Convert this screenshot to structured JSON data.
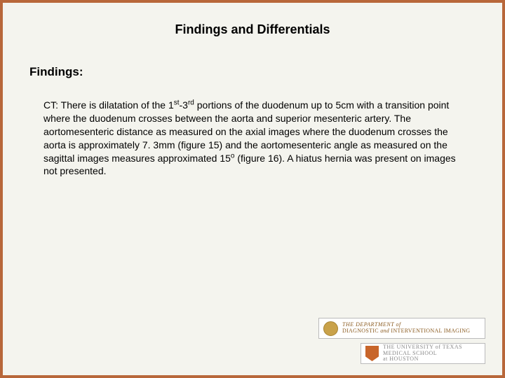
{
  "colors": {
    "border": "#b8673a",
    "background": "#f4f4ee",
    "text": "#000000",
    "logo_dept_accent": "#c9a24a",
    "logo_dept_text": "#8a5a1f",
    "logo_ut_accent": "#c8652a",
    "logo_ut_text": "#888888"
  },
  "title": "Findings and Differentials",
  "section_label": "Findings:",
  "body_prefix": "CT: There is dilatation of the 1",
  "body_sup1": "st",
  "body_mid1": "-3",
  "body_sup2": "rd",
  "body_mid2": " portions of the duodenum up to 5cm with a transition point where the duodenum crosses between the aorta and superior mesenteric artery. The aortomesenteric distance as measured on the axial images where the duodenum crosses the aorta is approximately 7. 3mm (figure 15) and the aortomesenteric angle as measured on the sagittal images measures approximated 15",
  "body_sup3": "o",
  "body_suffix": " (figure 16). A hiatus hernia was present on images not presented.",
  "logo_dept_line1": "THE DEPARTMENT of",
  "logo_dept_line2a": "DIAGNOSTIC",
  "logo_dept_line2b": " and ",
  "logo_dept_line2c": "INTERVENTIONAL IMAGING",
  "logo_ut_line1": "THE UNIVERSITY of TEXAS",
  "logo_ut_line2": "MEDICAL SCHOOL",
  "logo_ut_line3": "at HOUSTON"
}
